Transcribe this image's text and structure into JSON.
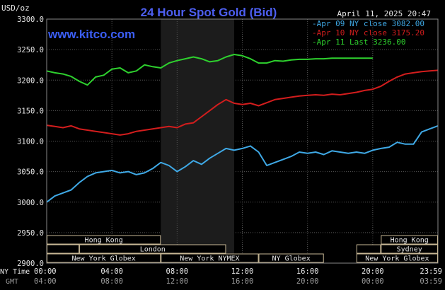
{
  "chart_data": {
    "type": "line",
    "title": "24 Hour Spot Gold (Bid)",
    "source": "www.kitco.com",
    "date_label": "April 11, 2025 20:47",
    "ylabel": "USD/oz",
    "ylim": [
      2900,
      3300
    ],
    "yticks": [
      "3300.0",
      "3250.0",
      "3200.0",
      "3150.0",
      "3100.0",
      "3050.0",
      "3000.0",
      "2950.0",
      "2900.0"
    ],
    "xlim": [
      0,
      24
    ],
    "xrow1_label": "NY Time",
    "xrow2_label": "GMT",
    "xticks_ny": [
      "00:00",
      "04:00",
      "08:00",
      "12:00",
      "16:00",
      "20:00",
      "23:59"
    ],
    "xticks_gmt": [
      "04:00",
      "08:00",
      "12:00",
      "16:00",
      "20:00",
      "00:00",
      "03:59"
    ],
    "highlight_range": [
      7,
      11.5
    ],
    "legend": [
      {
        "label": "Apr 09 NY close 3082.00",
        "color": "#3fa9e6"
      },
      {
        "label": "Apr 10 NY close 3175.20",
        "color": "#d31d1d"
      },
      {
        "label": "Apr 11 Last 3236.00",
        "color": "#2ed12e"
      }
    ],
    "series": [
      {
        "name": "Apr 09",
        "color": "#3fa9e6",
        "x": [
          0,
          0.5,
          1,
          1.5,
          2,
          2.5,
          3,
          3.5,
          4,
          4.5,
          5,
          5.5,
          6,
          6.5,
          7,
          7.5,
          8,
          8.5,
          9,
          9.5,
          10,
          10.5,
          11,
          11.5,
          12,
          12.5,
          13,
          13.5,
          14,
          14.5,
          15,
          15.5,
          16,
          16.5,
          17,
          17.5,
          18,
          18.5,
          19,
          19.5,
          20,
          20.5,
          21,
          21.5,
          22,
          22.5,
          23,
          23.5,
          24
        ],
        "y": [
          3000,
          3010,
          3015,
          3020,
          3032,
          3042,
          3048,
          3050,
          3052,
          3048,
          3050,
          3045,
          3048,
          3055,
          3065,
          3060,
          3050,
          3058,
          3068,
          3062,
          3072,
          3080,
          3088,
          3085,
          3088,
          3092,
          3082,
          3060,
          3065,
          3070,
          3075,
          3082,
          3080,
          3082,
          3078,
          3084,
          3082,
          3080,
          3082,
          3080,
          3085,
          3088,
          3090,
          3098,
          3095,
          3095,
          3115,
          3120,
          3125
        ]
      },
      {
        "name": "Apr 10",
        "color": "#d31d1d",
        "x": [
          0,
          0.5,
          1,
          1.5,
          2,
          2.5,
          3,
          3.5,
          4,
          4.5,
          5,
          5.5,
          6,
          6.5,
          7,
          7.5,
          8,
          8.5,
          9,
          9.5,
          10,
          10.5,
          11,
          11.5,
          12,
          12.5,
          13,
          13.5,
          14,
          14.5,
          15,
          15.5,
          16,
          16.5,
          17,
          17.5,
          18,
          18.5,
          19,
          19.5,
          20,
          20.5,
          21,
          21.5,
          22,
          22.5,
          23,
          23.5,
          24
        ],
        "y": [
          3126,
          3124,
          3122,
          3125,
          3120,
          3118,
          3116,
          3114,
          3112,
          3110,
          3112,
          3116,
          3118,
          3120,
          3122,
          3124,
          3122,
          3128,
          3130,
          3140,
          3150,
          3160,
          3168,
          3162,
          3160,
          3162,
          3158,
          3163,
          3168,
          3170,
          3172,
          3174,
          3175,
          3176,
          3175,
          3177,
          3176,
          3178,
          3180,
          3183,
          3185,
          3190,
          3198,
          3205,
          3210,
          3212,
          3214,
          3215,
          3216
        ]
      },
      {
        "name": "Apr 11",
        "color": "#2ed12e",
        "x": [
          0,
          0.5,
          1,
          1.5,
          2,
          2.5,
          3,
          3.5,
          4,
          4.5,
          5,
          5.5,
          6,
          6.5,
          7,
          7.5,
          8,
          8.5,
          9,
          9.5,
          10,
          10.5,
          11,
          11.5,
          12,
          12.5,
          13,
          13.5,
          14,
          14.5,
          15,
          15.5,
          16,
          16.5,
          17,
          17.5,
          18,
          18.5,
          19,
          19.5,
          20
        ],
        "y": [
          3215,
          3212,
          3210,
          3206,
          3198,
          3192,
          3205,
          3208,
          3218,
          3220,
          3212,
          3215,
          3225,
          3222,
          3220,
          3228,
          3232,
          3235,
          3238,
          3235,
          3230,
          3232,
          3238,
          3242,
          3240,
          3235,
          3228,
          3228,
          3232,
          3231,
          3233,
          3234,
          3234,
          3235,
          3235,
          3236,
          3236,
          3236,
          3236,
          3236,
          3236
        ]
      }
    ]
  },
  "sessions": {
    "row1": [
      {
        "label": "Hong Kong",
        "start": 0,
        "end": 7
      },
      {
        "label": "Hong Kong",
        "start": 20.5,
        "end": 24
      }
    ],
    "row2": [
      {
        "label": "",
        "start": 0,
        "end": 2
      },
      {
        "label": "London",
        "start": 2,
        "end": 11
      },
      {
        "label": "",
        "start": 19,
        "end": 20.5
      },
      {
        "label": "Sydney",
        "start": 20.5,
        "end": 24
      }
    ],
    "row3": [
      {
        "label": "New York Globex",
        "start": 0,
        "end": 7
      },
      {
        "label": "New York NYMEX",
        "start": 7,
        "end": 13
      },
      {
        "label": "NY Globex",
        "start": 13,
        "end": 17
      },
      {
        "label": "New York Globex",
        "start": 19,
        "end": 24
      }
    ]
  }
}
